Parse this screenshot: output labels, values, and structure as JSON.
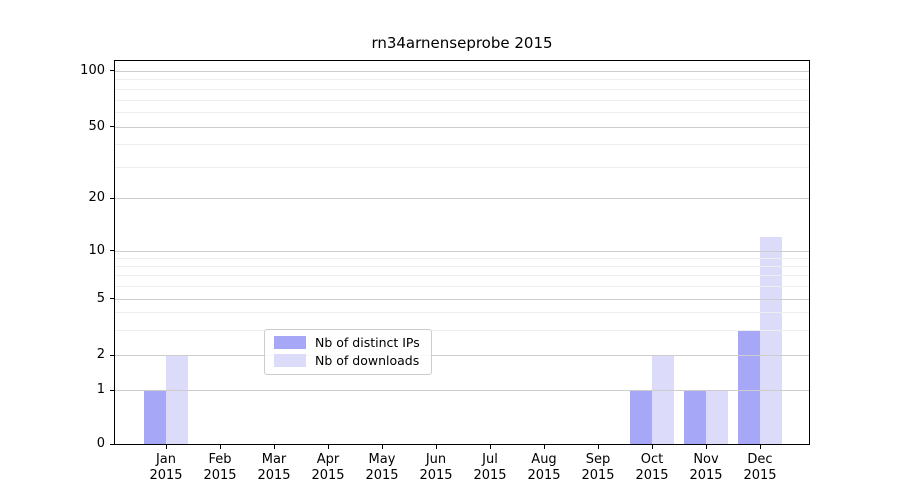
{
  "chart_data": {
    "type": "bar",
    "title": "rn34arnenseprobe 2015",
    "categories": [
      "Jan",
      "Feb",
      "Mar",
      "Apr",
      "May",
      "Jun",
      "Jul",
      "Aug",
      "Sep",
      "Oct",
      "Nov",
      "Dec"
    ],
    "x_label_year": "2015",
    "series": [
      {
        "name": "Nb of distinct IPs",
        "color": "#a7a7f7",
        "values": [
          1,
          0,
          0,
          0,
          0,
          0,
          0,
          0,
          0,
          1,
          1,
          3
        ]
      },
      {
        "name": "Nb of downloads",
        "color": "#dcdcfa",
        "values": [
          2,
          0,
          0,
          0,
          0,
          0,
          0,
          0,
          0,
          2,
          1,
          12
        ]
      }
    ],
    "y_axis": {
      "scale": "log",
      "ticks": [
        0,
        1,
        2,
        5,
        10,
        20,
        50,
        100
      ],
      "minor_ticks": [
        3,
        4,
        6,
        7,
        8,
        9,
        30,
        40,
        60,
        70,
        80,
        90
      ]
    },
    "legend_position": "lower center",
    "grid": "on"
  },
  "colors": {
    "distinct_ips": "#a7a7f7",
    "downloads": "#dcdcfa",
    "grid_major": "#cdcdcd",
    "grid_minor": "#eeeeee",
    "axis": "#000000",
    "legend_border": "#cccccc"
  }
}
